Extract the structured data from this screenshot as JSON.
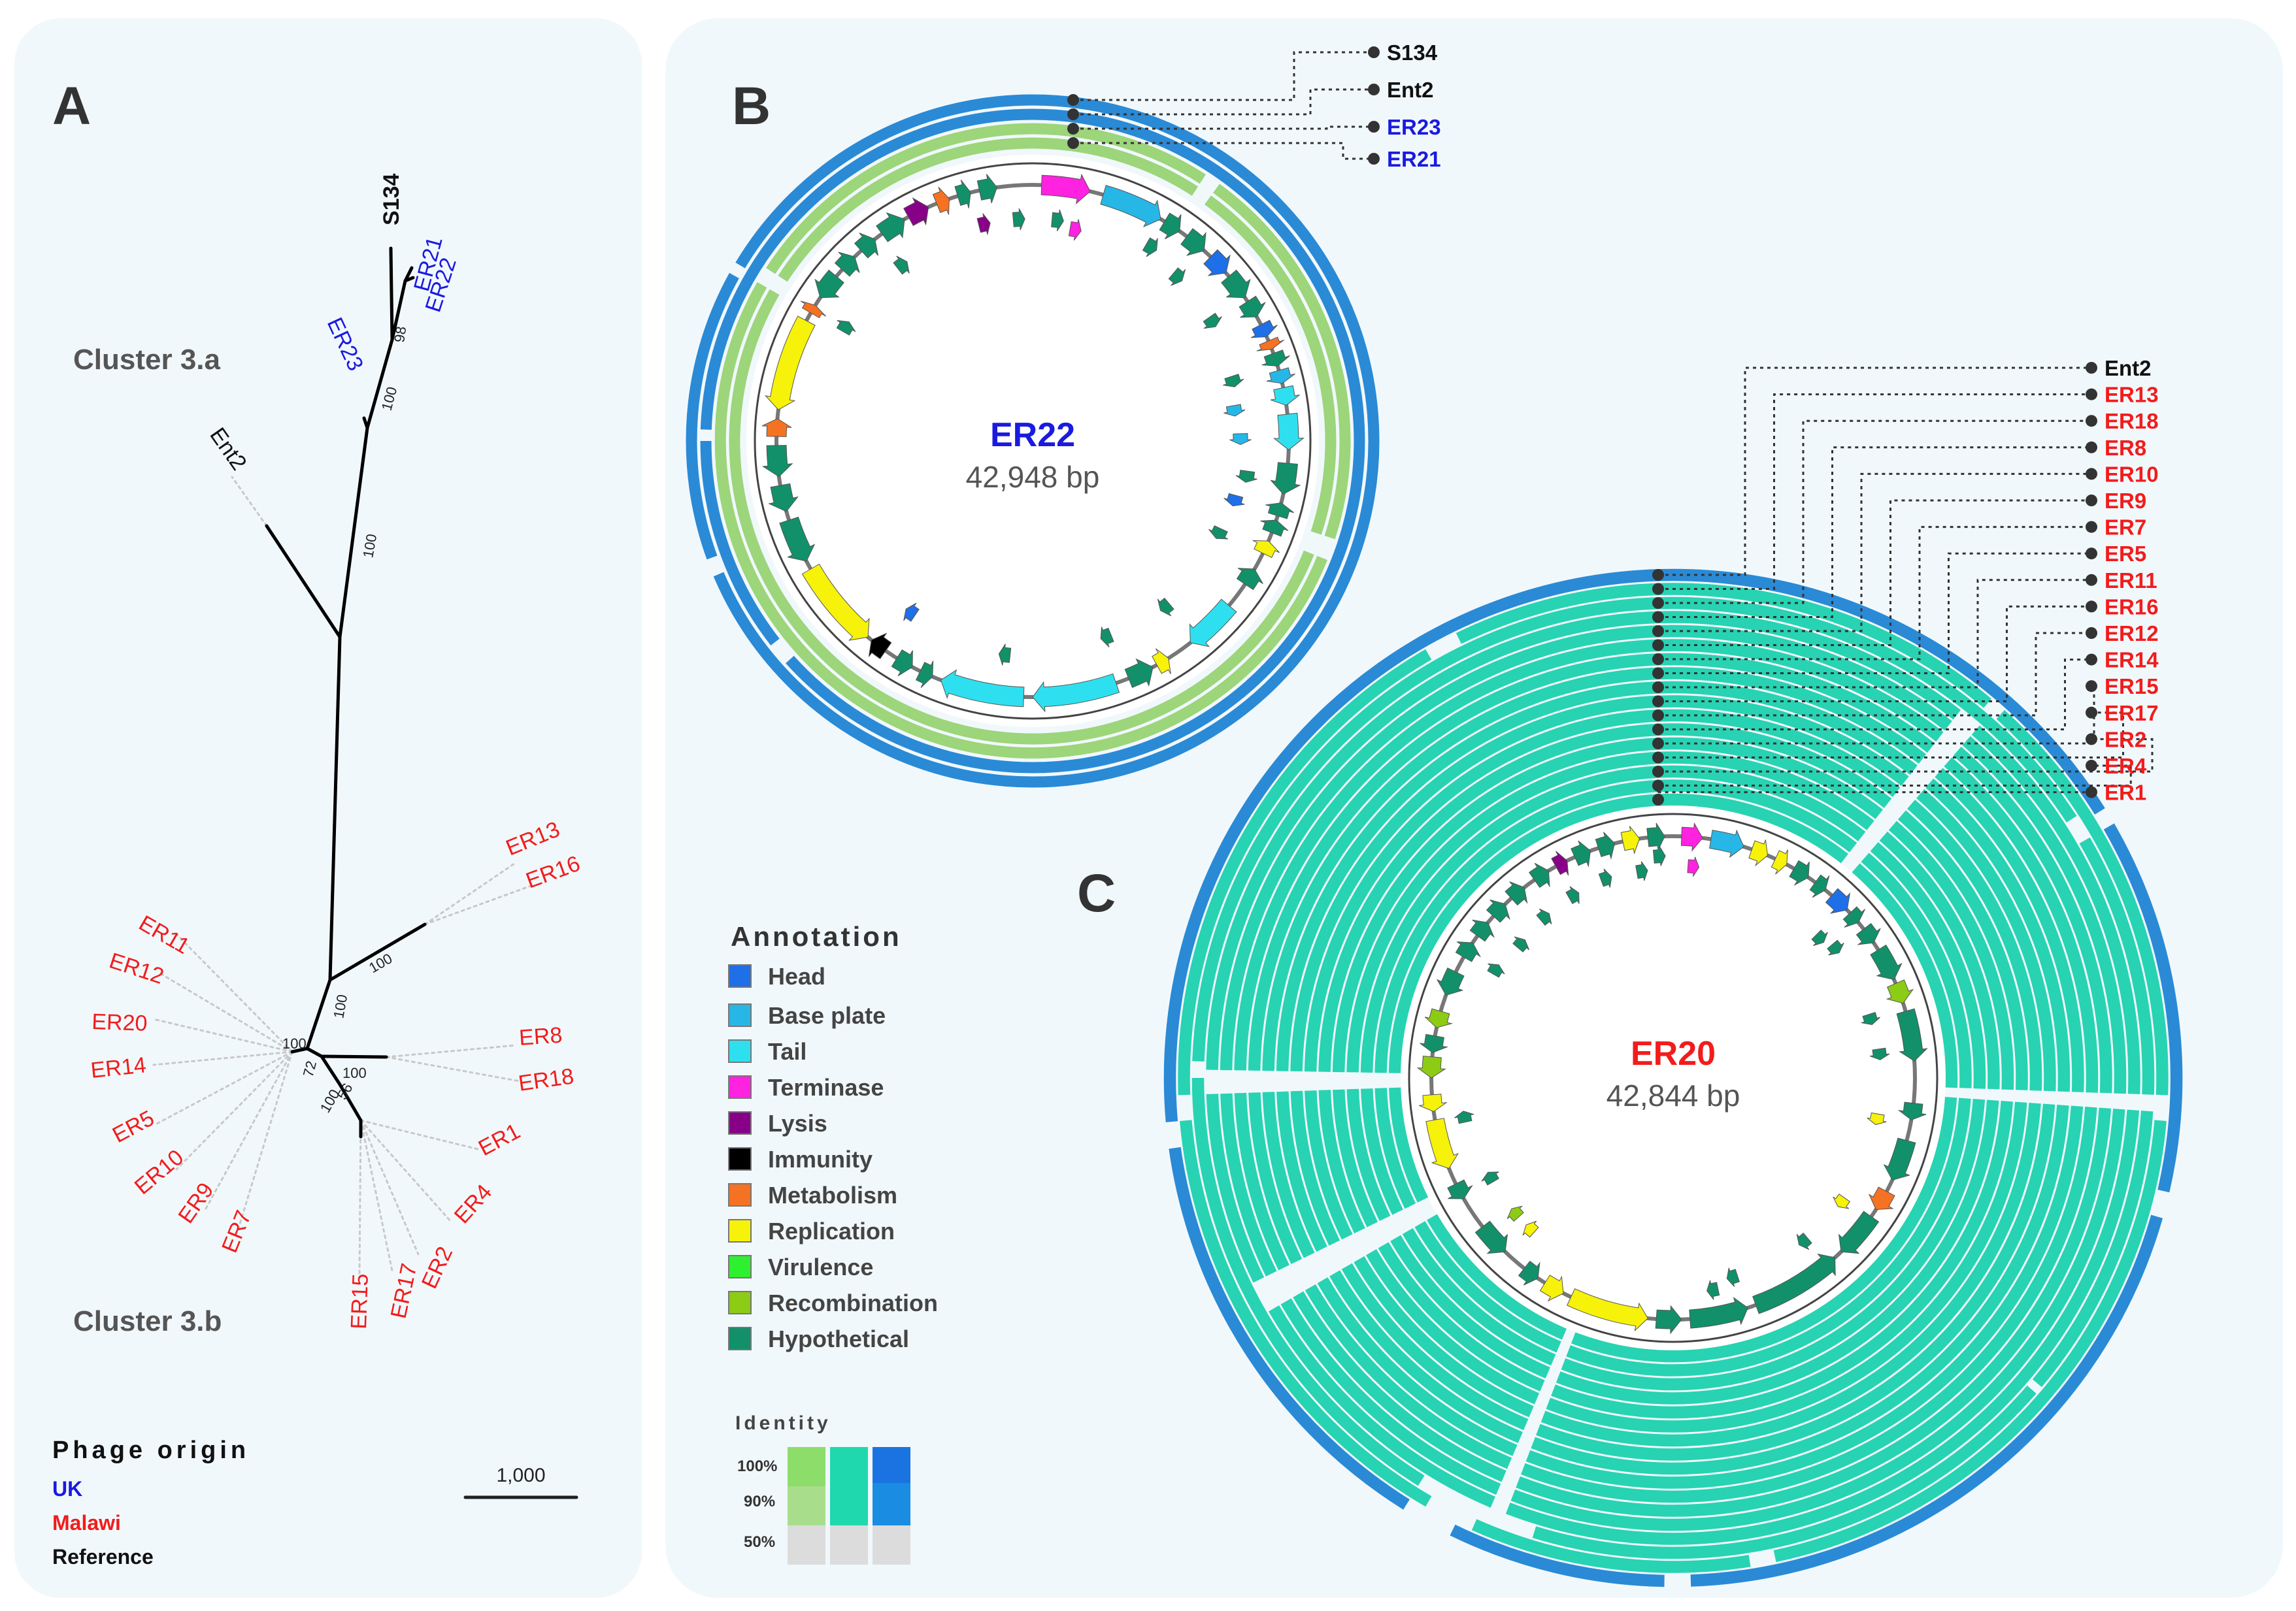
{
  "colors": {
    "uk": "#1a1ae0",
    "malawi": "#f21c1c",
    "reference": "#111111",
    "panel_bg": "#f1f8fc",
    "ring_blue": "#2a8ad6",
    "ring_green": "#9cd57a",
    "ring_teal": "#27d3b2",
    "head": "#1f6fe8",
    "base_plate": "#27b7e6",
    "tail": "#2ee0ef",
    "terminase": "#ff22e0",
    "lysis": "#880088",
    "immunity": "#000000",
    "metabolism": "#f57222",
    "replication": "#f7f20a",
    "virulence": "#2ef02e",
    "recombination": "#8ccc14",
    "hypothetical": "#12906a"
  },
  "panel_a": {
    "label": "A",
    "cluster_a": "Cluster 3.a",
    "cluster_b": "Cluster 3.b",
    "scale_label": "1,000",
    "tips": [
      {
        "name": "S134",
        "origin": "reference"
      },
      {
        "name": "ER21",
        "origin": "uk"
      },
      {
        "name": "ER22",
        "origin": "uk"
      },
      {
        "name": "ER23",
        "origin": "uk"
      },
      {
        "name": "Ent2",
        "origin": "reference"
      },
      {
        "name": "ER13",
        "origin": "malawi"
      },
      {
        "name": "ER16",
        "origin": "malawi"
      },
      {
        "name": "ER11",
        "origin": "malawi"
      },
      {
        "name": "ER12",
        "origin": "malawi"
      },
      {
        "name": "ER20",
        "origin": "malawi"
      },
      {
        "name": "ER14",
        "origin": "malawi"
      },
      {
        "name": "ER5",
        "origin": "malawi"
      },
      {
        "name": "ER10",
        "origin": "malawi"
      },
      {
        "name": "ER9",
        "origin": "malawi"
      },
      {
        "name": "ER7",
        "origin": "malawi"
      },
      {
        "name": "ER15",
        "origin": "malawi"
      },
      {
        "name": "ER17",
        "origin": "malawi"
      },
      {
        "name": "ER2",
        "origin": "malawi"
      },
      {
        "name": "ER4",
        "origin": "malawi"
      },
      {
        "name": "ER1",
        "origin": "malawi"
      },
      {
        "name": "ER18",
        "origin": "malawi"
      },
      {
        "name": "ER8",
        "origin": "malawi"
      }
    ],
    "bootstrap": [
      "98",
      "100",
      "100",
      "100",
      "100",
      "100",
      "72",
      "100",
      "56",
      "100"
    ],
    "legend": {
      "title": "Phage origin",
      "uk": "UK",
      "malawi": "Malawi",
      "reference": "Reference"
    }
  },
  "panel_b": {
    "label": "B",
    "center_name": "ER22",
    "center_size": "42,948 bp",
    "rings": [
      {
        "name": "S134",
        "origin": "reference"
      },
      {
        "name": "Ent2",
        "origin": "reference"
      },
      {
        "name": "ER23",
        "origin": "uk"
      },
      {
        "name": "ER21",
        "origin": "uk"
      }
    ]
  },
  "panel_c": {
    "label": "C",
    "center_name": "ER20",
    "center_size": "42,844 bp",
    "rings": [
      {
        "name": "Ent2",
        "origin": "reference"
      },
      {
        "name": "ER13",
        "origin": "malawi"
      },
      {
        "name": "ER18",
        "origin": "malawi"
      },
      {
        "name": "ER8",
        "origin": "malawi"
      },
      {
        "name": "ER10",
        "origin": "malawi"
      },
      {
        "name": "ER9",
        "origin": "malawi"
      },
      {
        "name": "ER7",
        "origin": "malawi"
      },
      {
        "name": "ER5",
        "origin": "malawi"
      },
      {
        "name": "ER11",
        "origin": "malawi"
      },
      {
        "name": "ER16",
        "origin": "malawi"
      },
      {
        "name": "ER12",
        "origin": "malawi"
      },
      {
        "name": "ER14",
        "origin": "malawi"
      },
      {
        "name": "ER15",
        "origin": "malawi"
      },
      {
        "name": "ER17",
        "origin": "malawi"
      },
      {
        "name": "ER2",
        "origin": "malawi"
      },
      {
        "name": "ER4",
        "origin": "malawi"
      },
      {
        "name": "ER1",
        "origin": "malawi"
      }
    ]
  },
  "annotation": {
    "title": "Annotation",
    "items": [
      {
        "label": "Head",
        "color": "#1f6fe8"
      },
      {
        "label": "Base plate",
        "color": "#27b7e6"
      },
      {
        "label": "Tail",
        "color": "#2ee0ef"
      },
      {
        "label": "Terminase",
        "color": "#ff22e0"
      },
      {
        "label": "Lysis",
        "color": "#880088"
      },
      {
        "label": "Immunity",
        "color": "#000000"
      },
      {
        "label": "Metabolism",
        "color": "#f57222"
      },
      {
        "label": "Replication",
        "color": "#f7f20a"
      },
      {
        "label": "Virulence",
        "color": "#2ef02e"
      },
      {
        "label": "Recombination",
        "color": "#8ccc14"
      },
      {
        "label": "Hypothetical",
        "color": "#12906a"
      }
    ]
  },
  "identity": {
    "title": "Identity",
    "levels": [
      "100%",
      "90%",
      "50%"
    ]
  }
}
